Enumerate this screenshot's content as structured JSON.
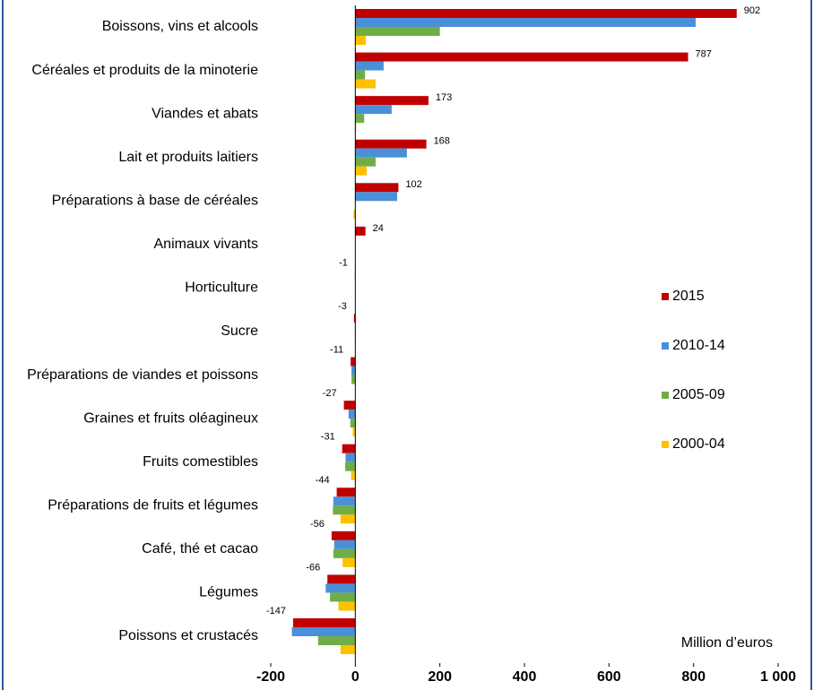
{
  "chart_data": {
    "type": "hbar",
    "categories": [
      "Boissons, vins et alcools",
      "Céréales et produits de la minoterie",
      "Viandes et abats",
      "Lait et produits laitiers",
      "Préparations à base de céréales",
      "Animaux vivants",
      "Horticulture",
      "Sucre",
      "Préparations de viandes et poissons",
      "Graines et fruits oléagineux",
      "Fruits comestibles",
      "Préparations de fruits et légumes",
      "Café, thé et cacao",
      "Légumes",
      "Poissons et crustacés"
    ],
    "series": [
      {
        "name": "2015",
        "color": "#c00000",
        "values": [
          902,
          787,
          173,
          168,
          102,
          24,
          -1,
          -3,
          -11,
          -27,
          -31,
          -44,
          -56,
          -66,
          -147
        ]
      },
      {
        "name": "2010-14",
        "color": "#4a90d9",
        "values": [
          805,
          67,
          86,
          122,
          99,
          0,
          0,
          -1,
          -9,
          -16,
          -23,
          -52,
          -50,
          -70,
          -150
        ]
      },
      {
        "name": "2005-09",
        "color": "#70ad47",
        "values": [
          200,
          23,
          21,
          48,
          0,
          0,
          0,
          -1,
          -9,
          -12,
          -24,
          -53,
          -52,
          -60,
          -88
        ]
      },
      {
        "name": "2000-04",
        "color": "#ffc000",
        "values": [
          25,
          48,
          2,
          27,
          -4,
          0,
          0,
          0,
          0,
          -6,
          -10,
          -35,
          -30,
          -40,
          -35
        ]
      }
    ],
    "show_value_labels_series": 0,
    "xlim": [
      -200,
      1000
    ],
    "xticks": [
      -200,
      0,
      200,
      400,
      600,
      800,
      {
        "value": 1000,
        "label": "1 000"
      }
    ],
    "legend": "right",
    "annotation": "Million d’euros"
  }
}
